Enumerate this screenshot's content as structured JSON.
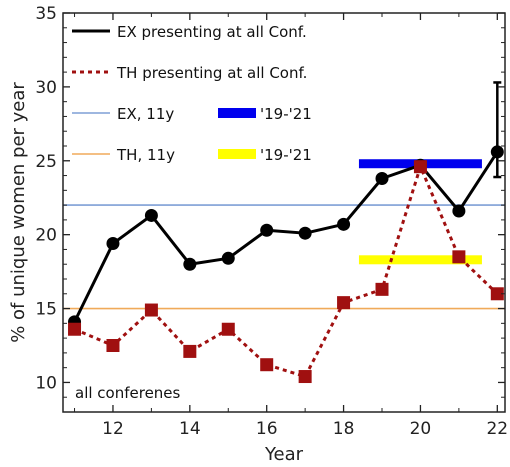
{
  "chart_data": {
    "type": "line",
    "xlabel": "Year",
    "ylabel": "% of unique women per year",
    "xlim": [
      10.7,
      22.2
    ],
    "ylim": [
      8,
      35
    ],
    "xticks": [
      12,
      14,
      16,
      18,
      20,
      22
    ],
    "yticks": [
      10,
      15,
      20,
      25,
      30,
      35
    ],
    "annotation": "all conferenes",
    "legend_position": "top-left",
    "series": [
      {
        "name": "EX presenting at all Conf.",
        "color": "#000000",
        "style": "solid",
        "marker": "circle",
        "x": [
          11,
          12,
          13,
          14,
          15,
          16,
          17,
          18,
          19,
          20,
          21,
          22
        ],
        "y": [
          14.1,
          19.4,
          21.3,
          18.0,
          18.4,
          20.3,
          20.1,
          20.7,
          23.8,
          24.7,
          21.6,
          25.6
        ],
        "error_bar": {
          "x": 22,
          "low": 23.9,
          "high": 30.3
        }
      },
      {
        "name": "TH presenting at all Conf.",
        "color": "#a01010",
        "style": "dashed",
        "marker": "square",
        "x": [
          11,
          12,
          13,
          14,
          15,
          16,
          17,
          18,
          19,
          20,
          21,
          22
        ],
        "y": [
          13.6,
          12.5,
          14.9,
          12.1,
          13.6,
          11.2,
          10.4,
          15.4,
          16.3,
          24.6,
          18.5,
          16.0
        ]
      }
    ],
    "reference_lines": [
      {
        "name": "EX, 11y",
        "y": 22.0,
        "color": "#7f9fd6"
      },
      {
        "name": "TH, 11y",
        "y": 15.0,
        "color": "#f0aa5a"
      }
    ],
    "period_bars": [
      {
        "name": "'19-'21",
        "x_start": 18.4,
        "x_end": 21.6,
        "y": 24.8,
        "color": "#0000ee"
      },
      {
        "name": "'19-'21",
        "x_start": 18.4,
        "x_end": 21.6,
        "y": 18.3,
        "color": "#ffff00"
      }
    ]
  }
}
